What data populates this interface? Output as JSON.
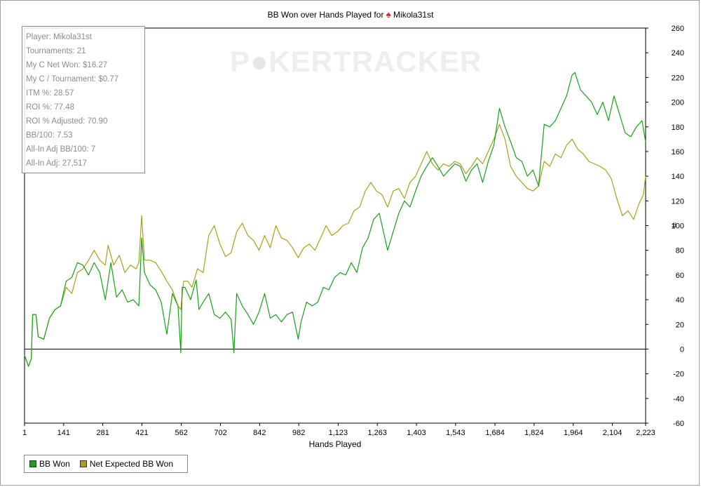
{
  "header": {
    "title_prefix": "BB Won over Hands Played for",
    "title_icon": "spade-icon",
    "player_name": "Mikola31st"
  },
  "watermark": {
    "text_a": "P",
    "text_b": "KER",
    "text_c": "TRACKER"
  },
  "stats": [
    "Player: Mikola31st",
    "Tournaments: 21",
    "My C Net Won: $16.27",
    "My C / Tournament: $0.77",
    "ITM %: 28.57",
    "ROI %: 77.48",
    "ROI % Adjusted: 70.90",
    "BB/100: 7.53",
    "All-In Adj BB/100: 7",
    "All-In Adj: 27,517"
  ],
  "legend": [
    {
      "label": "BB Won",
      "color": "#1aa01a"
    },
    {
      "label": "Net Expected BB Won",
      "color": "#a8a01a"
    }
  ],
  "chart_data": {
    "type": "line",
    "xlabel": "Hands Played",
    "ylabel": "#",
    "xlim": [
      1,
      2223
    ],
    "ylim": [
      -60,
      260
    ],
    "x_ticks": [
      1,
      141,
      281,
      421,
      562,
      702,
      842,
      982,
      1123,
      1263,
      1403,
      1543,
      1684,
      1824,
      1964,
      2104,
      2223
    ],
    "x_tick_labels": [
      "1",
      "141",
      "281",
      "421",
      "562",
      "702",
      "842",
      "982",
      "1,123",
      "1,263",
      "1,403",
      "1,543",
      "1,684",
      "1,824",
      "1,964",
      "2,104",
      "2,223"
    ],
    "y_ticks": [
      -60,
      -40,
      -20,
      0,
      20,
      40,
      60,
      80,
      100,
      120,
      140,
      160,
      180,
      200,
      220,
      240,
      260
    ],
    "grid": false,
    "series": [
      {
        "name": "BB Won",
        "color": "#1aa01a",
        "points": [
          [
            1,
            -5
          ],
          [
            15,
            -14
          ],
          [
            25,
            -8
          ],
          [
            30,
            28
          ],
          [
            42,
            28
          ],
          [
            50,
            10
          ],
          [
            70,
            8
          ],
          [
            90,
            25
          ],
          [
            110,
            32
          ],
          [
            130,
            35
          ],
          [
            150,
            55
          ],
          [
            170,
            58
          ],
          [
            190,
            70
          ],
          [
            210,
            68
          ],
          [
            230,
            60
          ],
          [
            250,
            70
          ],
          [
            270,
            62
          ],
          [
            290,
            40
          ],
          [
            310,
            70
          ],
          [
            330,
            42
          ],
          [
            350,
            48
          ],
          [
            370,
            38
          ],
          [
            390,
            40
          ],
          [
            410,
            35
          ],
          [
            420,
            90
          ],
          [
            430,
            62
          ],
          [
            450,
            52
          ],
          [
            470,
            48
          ],
          [
            490,
            38
          ],
          [
            510,
            12
          ],
          [
            530,
            45
          ],
          [
            550,
            35
          ],
          [
            560,
            -3
          ],
          [
            565,
            50
          ],
          [
            575,
            50
          ],
          [
            595,
            40
          ],
          [
            615,
            56
          ],
          [
            625,
            32
          ],
          [
            640,
            38
          ],
          [
            660,
            45
          ],
          [
            680,
            28
          ],
          [
            700,
            25
          ],
          [
            720,
            30
          ],
          [
            740,
            24
          ],
          [
            750,
            -3
          ],
          [
            760,
            45
          ],
          [
            780,
            35
          ],
          [
            800,
            28
          ],
          [
            820,
            20
          ],
          [
            840,
            30
          ],
          [
            860,
            45
          ],
          [
            880,
            25
          ],
          [
            900,
            28
          ],
          [
            920,
            22
          ],
          [
            940,
            28
          ],
          [
            960,
            30
          ],
          [
            980,
            8
          ],
          [
            990,
            22
          ],
          [
            1010,
            38
          ],
          [
            1030,
            35
          ],
          [
            1050,
            38
          ],
          [
            1070,
            50
          ],
          [
            1090,
            48
          ],
          [
            1110,
            58
          ],
          [
            1130,
            62
          ],
          [
            1150,
            60
          ],
          [
            1170,
            70
          ],
          [
            1190,
            62
          ],
          [
            1210,
            82
          ],
          [
            1230,
            90
          ],
          [
            1250,
            105
          ],
          [
            1270,
            110
          ],
          [
            1290,
            90
          ],
          [
            1300,
            80
          ],
          [
            1320,
            95
          ],
          [
            1340,
            110
          ],
          [
            1360,
            120
          ],
          [
            1380,
            115
          ],
          [
            1400,
            128
          ],
          [
            1420,
            140
          ],
          [
            1440,
            148
          ],
          [
            1460,
            155
          ],
          [
            1480,
            148
          ],
          [
            1500,
            140
          ],
          [
            1520,
            145
          ],
          [
            1540,
            150
          ],
          [
            1560,
            148
          ],
          [
            1580,
            136
          ],
          [
            1600,
            145
          ],
          [
            1620,
            150
          ],
          [
            1640,
            135
          ],
          [
            1660,
            152
          ],
          [
            1680,
            165
          ],
          [
            1700,
            195
          ],
          [
            1720,
            180
          ],
          [
            1740,
            168
          ],
          [
            1760,
            155
          ],
          [
            1780,
            152
          ],
          [
            1800,
            140
          ],
          [
            1820,
            145
          ],
          [
            1840,
            132
          ],
          [
            1860,
            182
          ],
          [
            1880,
            180
          ],
          [
            1900,
            185
          ],
          [
            1920,
            195
          ],
          [
            1940,
            205
          ],
          [
            1960,
            222
          ],
          [
            1970,
            224
          ],
          [
            1990,
            210
          ],
          [
            2010,
            205
          ],
          [
            2030,
            200
          ],
          [
            2050,
            190
          ],
          [
            2070,
            200
          ],
          [
            2090,
            185
          ],
          [
            2110,
            205
          ],
          [
            2130,
            190
          ],
          [
            2150,
            175
          ],
          [
            2170,
            172
          ],
          [
            2190,
            180
          ],
          [
            2210,
            185
          ],
          [
            2223,
            168
          ]
        ]
      },
      {
        "name": "Net Expected BB Won",
        "color": "#a8a01a",
        "points": [
          [
            1,
            -5
          ],
          [
            15,
            -14
          ],
          [
            25,
            -8
          ],
          [
            30,
            28
          ],
          [
            42,
            28
          ],
          [
            50,
            10
          ],
          [
            70,
            8
          ],
          [
            90,
            25
          ],
          [
            110,
            32
          ],
          [
            130,
            35
          ],
          [
            150,
            50
          ],
          [
            170,
            45
          ],
          [
            190,
            62
          ],
          [
            210,
            65
          ],
          [
            230,
            72
          ],
          [
            250,
            80
          ],
          [
            270,
            72
          ],
          [
            290,
            68
          ],
          [
            300,
            84
          ],
          [
            320,
            68
          ],
          [
            340,
            76
          ],
          [
            360,
            62
          ],
          [
            380,
            68
          ],
          [
            400,
            65
          ],
          [
            410,
            70
          ],
          [
            420,
            108
          ],
          [
            430,
            72
          ],
          [
            450,
            72
          ],
          [
            470,
            70
          ],
          [
            490,
            63
          ],
          [
            510,
            55
          ],
          [
            530,
            48
          ],
          [
            550,
            35
          ],
          [
            560,
            32
          ],
          [
            570,
            55
          ],
          [
            585,
            55
          ],
          [
            600,
            50
          ],
          [
            620,
            65
          ],
          [
            640,
            62
          ],
          [
            660,
            92
          ],
          [
            680,
            100
          ],
          [
            700,
            85
          ],
          [
            720,
            75
          ],
          [
            740,
            78
          ],
          [
            760,
            95
          ],
          [
            780,
            102
          ],
          [
            800,
            92
          ],
          [
            820,
            88
          ],
          [
            840,
            80
          ],
          [
            860,
            92
          ],
          [
            880,
            82
          ],
          [
            900,
            100
          ],
          [
            920,
            90
          ],
          [
            940,
            88
          ],
          [
            960,
            82
          ],
          [
            980,
            74
          ],
          [
            1000,
            82
          ],
          [
            1020,
            85
          ],
          [
            1040,
            80
          ],
          [
            1060,
            90
          ],
          [
            1080,
            100
          ],
          [
            1100,
            92
          ],
          [
            1120,
            95
          ],
          [
            1140,
            100
          ],
          [
            1160,
            102
          ],
          [
            1180,
            112
          ],
          [
            1200,
            115
          ],
          [
            1220,
            128
          ],
          [
            1240,
            135
          ],
          [
            1260,
            128
          ],
          [
            1280,
            125
          ],
          [
            1300,
            115
          ],
          [
            1320,
            128
          ],
          [
            1340,
            130
          ],
          [
            1360,
            122
          ],
          [
            1380,
            135
          ],
          [
            1400,
            140
          ],
          [
            1420,
            150
          ],
          [
            1440,
            160
          ],
          [
            1460,
            150
          ],
          [
            1480,
            145
          ],
          [
            1500,
            150
          ],
          [
            1520,
            148
          ],
          [
            1540,
            152
          ],
          [
            1560,
            150
          ],
          [
            1580,
            142
          ],
          [
            1600,
            148
          ],
          [
            1620,
            155
          ],
          [
            1640,
            150
          ],
          [
            1660,
            160
          ],
          [
            1680,
            170
          ],
          [
            1700,
            182
          ],
          [
            1720,
            170
          ],
          [
            1740,
            148
          ],
          [
            1760,
            140
          ],
          [
            1780,
            135
          ],
          [
            1800,
            130
          ],
          [
            1820,
            128
          ],
          [
            1840,
            132
          ],
          [
            1860,
            152
          ],
          [
            1880,
            148
          ],
          [
            1900,
            158
          ],
          [
            1920,
            155
          ],
          [
            1940,
            165
          ],
          [
            1960,
            170
          ],
          [
            1980,
            162
          ],
          [
            2000,
            158
          ],
          [
            2020,
            152
          ],
          [
            2040,
            150
          ],
          [
            2060,
            148
          ],
          [
            2080,
            145
          ],
          [
            2100,
            138
          ],
          [
            2120,
            122
          ],
          [
            2140,
            108
          ],
          [
            2160,
            112
          ],
          [
            2180,
            105
          ],
          [
            2200,
            118
          ],
          [
            2215,
            125
          ],
          [
            2223,
            140
          ]
        ]
      }
    ]
  }
}
